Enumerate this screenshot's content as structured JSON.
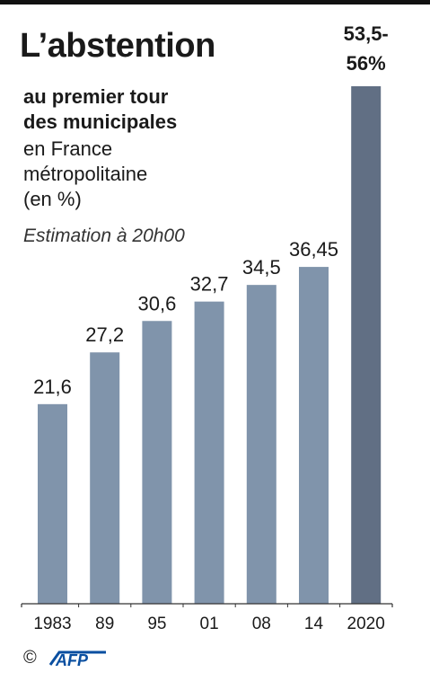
{
  "title": "L’abstention",
  "subtitle_bold": [
    "au premier tour",
    "des municipales"
  ],
  "subtitle": [
    "en France",
    "métropolitaine",
    "(en %)"
  ],
  "note": "Estimation à 20h00",
  "copyright": "©",
  "logo_text": "AFP",
  "colors": {
    "bar": "#8094ab",
    "bar_highlight": "#616f84",
    "axis": "#333333"
  },
  "chart_data": {
    "type": "bar",
    "title": "L’abstention",
    "categories": [
      "1983",
      "89",
      "95",
      "01",
      "08",
      "14",
      "2020"
    ],
    "values": [
      21.6,
      27.2,
      30.6,
      32.7,
      34.5,
      36.45,
      56
    ],
    "range_2020": [
      53.5,
      56
    ],
    "value_labels": [
      "21,6",
      "27,2",
      "30,6",
      "32,7",
      "34,5",
      "36,45",
      [
        "53,5-",
        "56%"
      ]
    ],
    "ylim": [
      0,
      56
    ],
    "xlabel": "",
    "ylabel": "",
    "grid": false,
    "legend": "none"
  }
}
